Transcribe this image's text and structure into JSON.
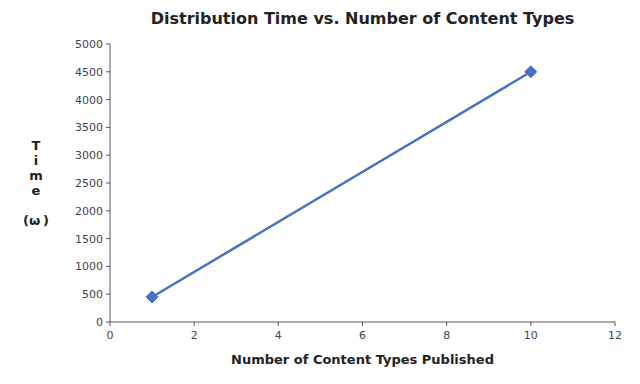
{
  "chart_data": {
    "type": "line",
    "title": "Distribution Time vs. Number of Content Types",
    "x_label": "Number of Content Types Published",
    "y_label": "T\ni\nm\ne\n\n(ω )",
    "x": [
      1,
      10
    ],
    "values": [
      450,
      4500
    ],
    "color": "#4472C4",
    "marker": "diamond",
    "xlim": [
      0,
      12
    ],
    "ylim": [
      0,
      5000
    ],
    "xticks": [
      0,
      2,
      4,
      6,
      8,
      10,
      12
    ],
    "yticks": [
      0,
      500,
      1000,
      1500,
      2000,
      2500,
      3000,
      3500,
      4000,
      4500,
      5000
    ],
    "grid": false
  }
}
